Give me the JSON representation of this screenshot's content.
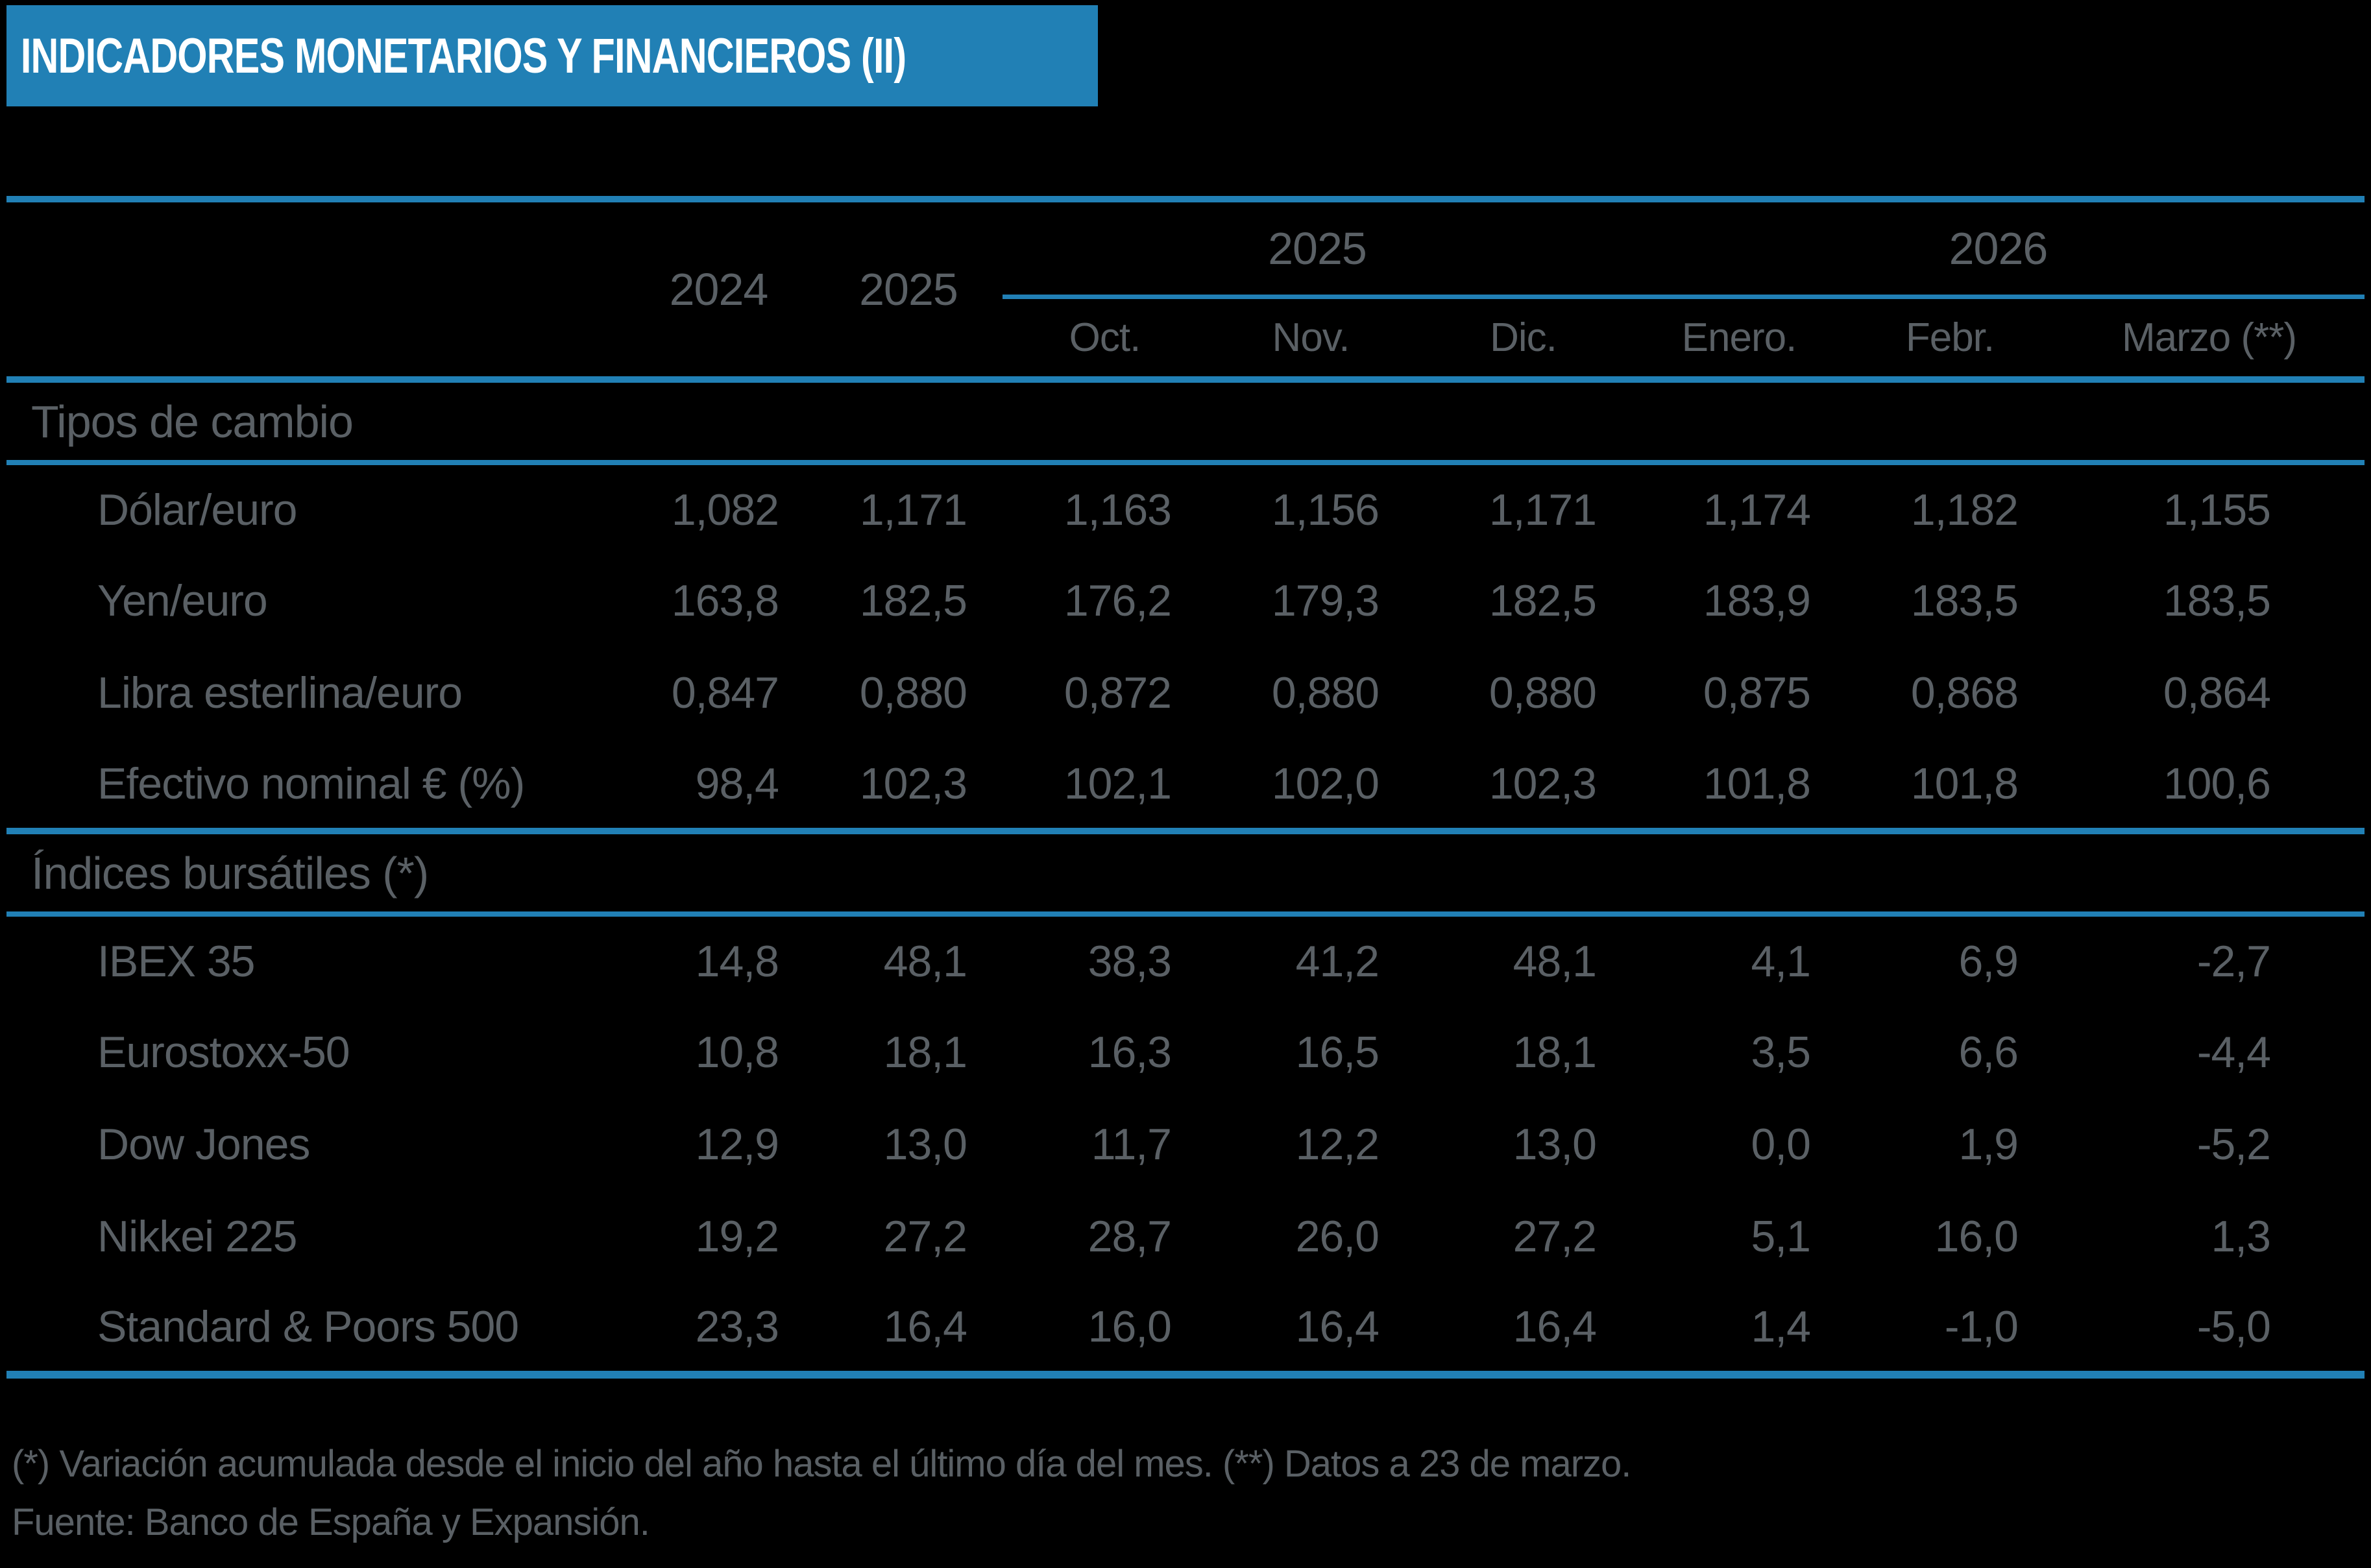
{
  "title": "INDICADORES MONETARIOS Y FINANCIEROS (II)",
  "colors": {
    "accent_blue": "#2180B5",
    "text_gray": "#5A6065",
    "title_text": "#FFFFFF",
    "background": "#000000"
  },
  "header": {
    "years": [
      "2024",
      "2025"
    ],
    "groups": [
      {
        "label": "2025",
        "months": [
          "Oct.",
          "Nov.",
          "Dic."
        ]
      },
      {
        "label": "2026",
        "months": [
          "Enero.",
          "Febr.",
          "Marzo (**)"
        ]
      }
    ]
  },
  "sections": [
    {
      "label": "Tipos de cambio",
      "rows": [
        {
          "label": "Dólar/euro",
          "values": [
            "1,082",
            "1,171",
            "1,163",
            "1,156",
            "1,171",
            "1,174",
            "1,182",
            "1,155"
          ]
        },
        {
          "label": "Yen/euro",
          "values": [
            "163,8",
            "182,5",
            "176,2",
            "179,3",
            "182,5",
            "183,9",
            "183,5",
            "183,5"
          ]
        },
        {
          "label": "Libra esterlina/euro",
          "values": [
            "0,847",
            "0,880",
            "0,872",
            "0,880",
            "0,880",
            "0,875",
            "0,868",
            "0,864"
          ]
        },
        {
          "label": "Efectivo nominal € (%)",
          "values": [
            "98,4",
            "102,3",
            "102,1",
            "102,0",
            "102,3",
            "101,8",
            "101,8",
            "100,6"
          ]
        }
      ]
    },
    {
      "label": "Índices bursátiles (*)",
      "rows": [
        {
          "label": "IBEX 35",
          "values": [
            "14,8",
            "48,1",
            "38,3",
            "41,2",
            "48,1",
            "4,1",
            "6,9",
            "-2,7"
          ]
        },
        {
          "label": "Eurostoxx-50",
          "values": [
            "10,8",
            "18,1",
            "16,3",
            "16,5",
            "18,1",
            "3,5",
            "6,6",
            "-4,4"
          ]
        },
        {
          "label": "Dow Jones",
          "values": [
            "12,9",
            "13,0",
            "11,7",
            "12,2",
            "13,0",
            "0,0",
            "1,9",
            "-5,2"
          ]
        },
        {
          "label": "Nikkei 225",
          "values": [
            "19,2",
            "27,2",
            "28,7",
            "26,0",
            "27,2",
            "5,1",
            "16,0",
            "1,3"
          ]
        },
        {
          "label": "Standard & Poors 500",
          "values": [
            "23,3",
            "16,4",
            "16,0",
            "16,4",
            "16,4",
            "1,4",
            "-1,0",
            "-5,0"
          ]
        }
      ]
    }
  ],
  "footer": {
    "note": "(*) Variación acumulada desde el inicio del año hasta el último día del mes. (**) Datos a 23 de marzo.",
    "source": "Fuente: Banco de España y Expansión."
  }
}
